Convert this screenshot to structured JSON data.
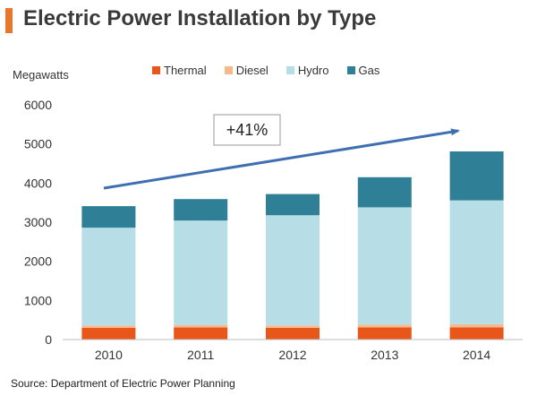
{
  "chart_data": {
    "type": "bar",
    "stacked": true,
    "title": "Electric Power Installation by Type",
    "ylabel": "Megawatts",
    "xlabel": "",
    "categories": [
      "2010",
      "2011",
      "2012",
      "2013",
      "2014"
    ],
    "ylim": [
      0,
      6000
    ],
    "yticks": [
      "0",
      "1000",
      "2000",
      "3000",
      "4000",
      "5000",
      "6000"
    ],
    "grid": false,
    "legend_position": "top",
    "series": [
      {
        "name": "Thermal",
        "color": "#e8561a",
        "values": [
          300,
          310,
          300,
          310,
          310
        ]
      },
      {
        "name": "Diesel",
        "color": "#f6b98c",
        "values": [
          60,
          60,
          60,
          70,
          80
        ]
      },
      {
        "name": "Hydro",
        "color": "#b7dde6",
        "values": [
          2500,
          2670,
          2820,
          3000,
          3170
        ]
      },
      {
        "name": "Gas",
        "color": "#2f7f96",
        "values": [
          550,
          550,
          540,
          770,
          1250
        ]
      }
    ],
    "annotation": {
      "text": "+41%",
      "arrow_color": "#3e6fb0"
    },
    "source": "Source: Department of Electric Power Planning"
  },
  "colors": {
    "accent": "#e8772e",
    "axis": "#bdbdbd"
  }
}
